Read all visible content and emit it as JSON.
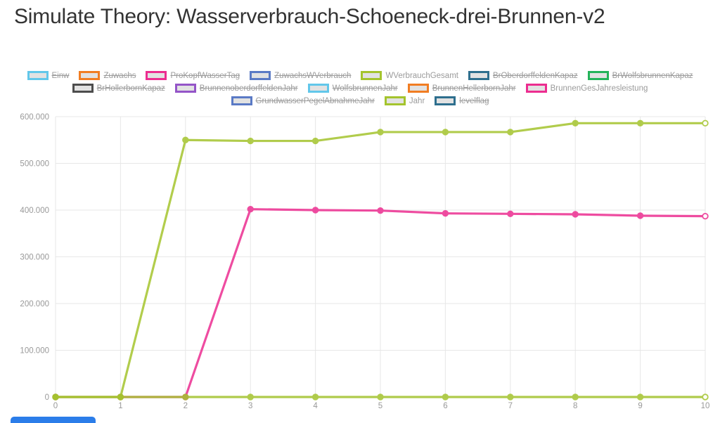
{
  "page": {
    "title": "Simulate Theory: Wasserverbrauch-Schoeneck-drei-Brunnen-v2"
  },
  "ui": {
    "primary_button_color": "#2b7de9"
  },
  "chart_data": {
    "type": "line",
    "x": [
      0,
      1,
      2,
      3,
      4,
      5,
      6,
      7,
      8,
      9,
      10
    ],
    "xtick_labels": [
      "0",
      "1",
      "2",
      "3",
      "4",
      "5",
      "6",
      "7",
      "8",
      "9",
      "10"
    ],
    "ytick_values": [
      0,
      100000,
      200000,
      300000,
      400000,
      500000,
      600000
    ],
    "ytick_labels": [
      "0",
      "100.000",
      "200.000",
      "300.000",
      "400.000",
      "500.000",
      "600.000"
    ],
    "ylim": [
      0,
      600000
    ],
    "grid": true,
    "legend_position": "top",
    "series": [
      {
        "name": "BrunnenGesJahresleistung",
        "color": "#ec2d90",
        "values": [
          0,
          0,
          0,
          402000,
          400000,
          399000,
          393000,
          392000,
          391000,
          388000,
          387000
        ]
      },
      {
        "name": "WVerbrauchGesamt",
        "color": "#a4c42d",
        "values": [
          0,
          0,
          550000,
          548000,
          548000,
          567000,
          567000,
          567000,
          586000,
          586000,
          586000
        ]
      },
      {
        "name": "Jahr",
        "color": "#a4c42d",
        "values": [
          0,
          1,
          2,
          3,
          4,
          5,
          6,
          7,
          8,
          9,
          10
        ]
      }
    ],
    "legend": {
      "rows": [
        [
          {
            "label": "Einw",
            "color": "#62c7ea",
            "active": false
          },
          {
            "label": "Zuwachs",
            "color": "#f17d23",
            "active": false
          },
          {
            "label": "ProKopfWasserTag",
            "color": "#ec2d90",
            "active": false
          },
          {
            "label": "ZuwachsWVerbrauch",
            "color": "#5a7ac5",
            "active": false
          },
          {
            "label": "WVerbrauchGesamt",
            "color": "#a4c42d",
            "active": true
          },
          {
            "label": "BrOberdorffeldenKapaz",
            "color": "#2e6f8e",
            "active": false
          },
          {
            "label": "BrWolfsbrunnenKapaz",
            "color": "#24b35a",
            "active": false
          }
        ],
        [
          {
            "label": "BrHollerbornKapaz",
            "color": "#4d4d4d",
            "active": false
          },
          {
            "label": "BrunnenoberdorffeldenJahr",
            "color": "#9455c8",
            "active": false
          },
          {
            "label": "WolfsbrunnenJahr",
            "color": "#62c7ea",
            "active": false
          },
          {
            "label": "BrunnenHellerbornJahr",
            "color": "#f17d23",
            "active": false
          },
          {
            "label": "BrunnenGesJahresleistung",
            "color": "#ec2d90",
            "active": true
          }
        ],
        [
          {
            "label": "GrundwasserPegelAbnahmeJahr",
            "color": "#5a7ac5",
            "active": false
          },
          {
            "label": "Jahr",
            "color": "#a4c42d",
            "active": true
          },
          {
            "label": "levelflag",
            "color": "#2e6f8e",
            "active": false
          }
        ]
      ]
    }
  }
}
